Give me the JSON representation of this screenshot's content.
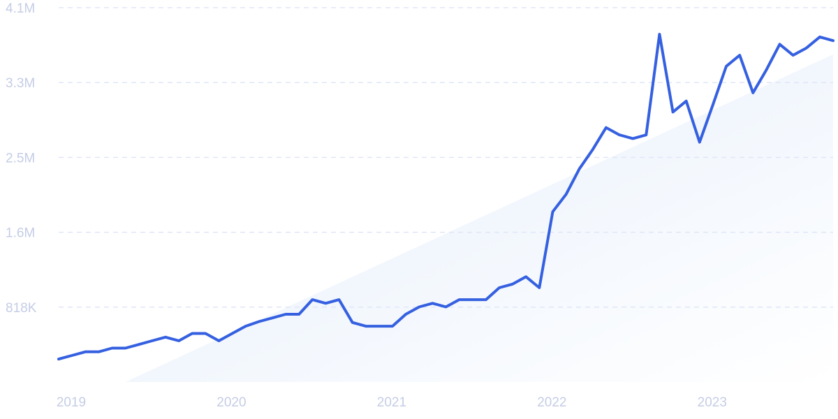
{
  "chart_data": {
    "type": "line",
    "title": "",
    "xlabel": "",
    "ylabel": "",
    "grid": true,
    "legend": "none",
    "colors": {
      "line": "#3560e0",
      "trend_fill_start": "#e4eefb",
      "trend_fill_end": "#ffffff",
      "grid": "#dfe6f7",
      "tick_text": "#c5cde6"
    },
    "y_ticks": [
      {
        "label": "818K",
        "value": 818000
      },
      {
        "label": "1.6M",
        "value": 1636000
      },
      {
        "label": "2.5M",
        "value": 2454000
      },
      {
        "label": "3.3M",
        "value": 3272000
      },
      {
        "label": "4.1M",
        "value": 4090000
      }
    ],
    "ylim": [
      0,
      4090000
    ],
    "x_ticks": [
      {
        "label": "2019",
        "value": "2019-01"
      },
      {
        "label": "2020",
        "value": "2020-01"
      },
      {
        "label": "2021",
        "value": "2021-01"
      },
      {
        "label": "2022",
        "value": "2022-01"
      },
      {
        "label": "2023",
        "value": "2023-01"
      }
    ],
    "xlim": [
      "2019-01",
      "2023-11"
    ],
    "trend": {
      "start": {
        "x": "2019-06",
        "y": 0
      },
      "end": {
        "x": "2023-11",
        "y": 3580000
      }
    },
    "series": [
      {
        "x": [
          "2019-01",
          "2019-02",
          "2019-03",
          "2019-04",
          "2019-05",
          "2019-06",
          "2019-07",
          "2019-08",
          "2019-09",
          "2019-10",
          "2019-11",
          "2019-12",
          "2020-01",
          "2020-02",
          "2020-03",
          "2020-04",
          "2020-05",
          "2020-06",
          "2020-07",
          "2020-08",
          "2020-09",
          "2020-10",
          "2020-11",
          "2020-12",
          "2021-01",
          "2021-02",
          "2021-03",
          "2021-04",
          "2021-05",
          "2021-06",
          "2021-07",
          "2021-08",
          "2021-09",
          "2021-10",
          "2021-11",
          "2021-12",
          "2022-01",
          "2022-02",
          "2022-03",
          "2022-04",
          "2022-05",
          "2022-06",
          "2022-07",
          "2022-08",
          "2022-09",
          "2022-10",
          "2022-11",
          "2022-12",
          "2023-01",
          "2023-02",
          "2023-03",
          "2023-04",
          "2023-05",
          "2023-06",
          "2023-07",
          "2023-08",
          "2023-09",
          "2023-10",
          "2023-11"
        ],
        "values": [
          250000,
          290000,
          330000,
          330000,
          370000,
          370000,
          410000,
          450000,
          490000,
          450000,
          530000,
          530000,
          450000,
          530000,
          610000,
          660000,
          700000,
          740000,
          740000,
          900000,
          860000,
          900000,
          650000,
          610000,
          610000,
          610000,
          740000,
          820000,
          860000,
          820000,
          900000,
          900000,
          900000,
          1030000,
          1070000,
          1150000,
          1030000,
          1860000,
          2050000,
          2330000,
          2540000,
          2780000,
          2700000,
          2660000,
          2700000,
          3800000,
          2950000,
          3070000,
          2620000,
          3030000,
          3450000,
          3570000,
          3160000,
          3410000,
          3690000,
          3570000,
          3650000,
          3770000,
          3730000
        ]
      }
    ]
  }
}
